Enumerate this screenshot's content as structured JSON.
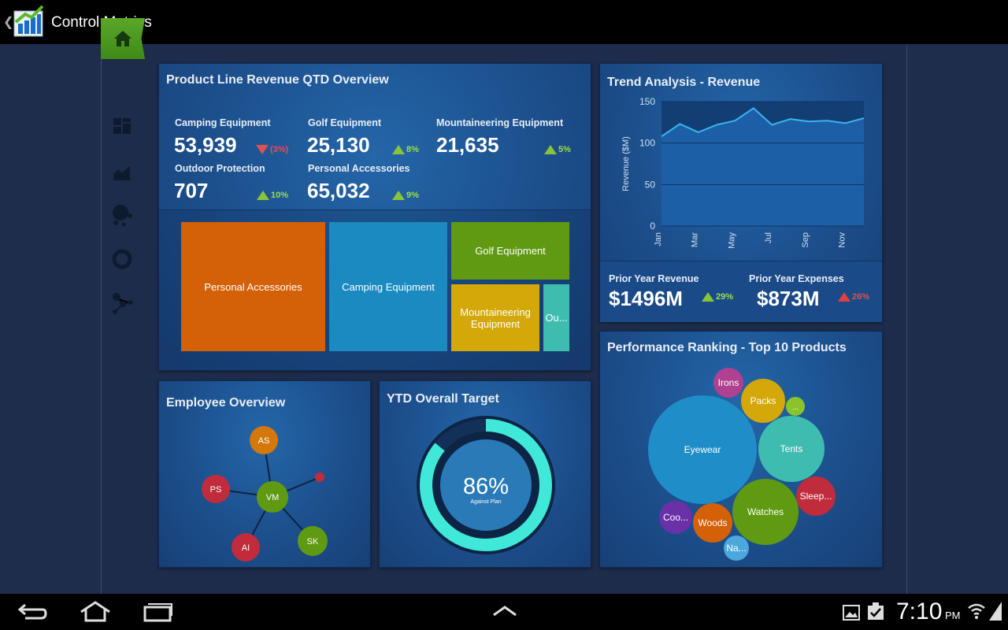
{
  "app": {
    "title": "Control Metrics"
  },
  "colors": {
    "accent_green": "#4a9a1e",
    "panel_blue": "#1c4f8c",
    "up": "#9be04a",
    "down": "#e05050"
  },
  "sidebar": {
    "items": [
      {
        "icon": "home-icon"
      },
      {
        "icon": "dashboard-grid-icon"
      },
      {
        "icon": "area-chart-icon"
      },
      {
        "icon": "bubble-chart-icon"
      },
      {
        "icon": "donut-chart-icon"
      },
      {
        "icon": "network-graph-icon"
      }
    ]
  },
  "product_revenue": {
    "title": "Product Line Revenue QTD Overview",
    "kpis": [
      {
        "label": "Camping Equipment",
        "value": "53,939",
        "delta": "(3%)",
        "trend": "down"
      },
      {
        "label": "Golf Equipment",
        "value": "25,130",
        "delta": "8%",
        "trend": "up"
      },
      {
        "label": "Mountaineering Equipment",
        "value": "21,635",
        "delta": "5%",
        "trend": "up"
      },
      {
        "label": "Outdoor Protection",
        "value": "707",
        "delta": "10%",
        "trend": "up"
      },
      {
        "label": "Personal Accessories",
        "value": "65,032",
        "delta": "9%",
        "trend": "up"
      }
    ],
    "treemap": [
      {
        "label": "Personal Accessories",
        "color": "#d46008"
      },
      {
        "label": "Camping Equipment",
        "color": "#1b8ac0"
      },
      {
        "label": "Golf Equipment",
        "color": "#5f9a12"
      },
      {
        "label": "Mountaineering Equipment",
        "color": "#d4a808"
      },
      {
        "label": "Ou...",
        "color": "#3fbcb0"
      }
    ]
  },
  "trend": {
    "title": "Trend Analysis - Revenue",
    "prior_revenue_label": "Prior Year Revenue",
    "prior_revenue_value": "$1496M",
    "prior_revenue_delta": "29%",
    "prior_expenses_label": "Prior Year Expenses",
    "prior_expenses_value": "$873M",
    "prior_expenses_delta": "26%"
  },
  "chart_data": {
    "type": "area",
    "title": "Trend Analysis - Revenue",
    "ylabel": "Revenue ($M)",
    "xlabel": "",
    "ylim": [
      0,
      150
    ],
    "yticks": [
      0,
      50,
      100,
      150
    ],
    "x": [
      "Jan",
      "Feb",
      "Mar",
      "Apr",
      "May",
      "Jun",
      "Jul",
      "Aug",
      "Sep",
      "Oct",
      "Nov",
      "Dec"
    ],
    "xtick_labels": [
      "Jan",
      "Mar",
      "May",
      "Jul",
      "Sep",
      "Nov"
    ],
    "values": [
      108,
      123,
      113,
      122,
      127,
      142,
      122,
      129,
      126,
      127,
      124,
      130
    ]
  },
  "employee": {
    "title": "Employee Overview",
    "nodes": [
      {
        "label": "AS",
        "color": "#d4780a"
      },
      {
        "label": "PS",
        "color": "#c02c3c"
      },
      {
        "label": "VM",
        "color": "#5f9a12"
      },
      {
        "label": "AI",
        "color": "#c02c3c"
      },
      {
        "label": "SK",
        "color": "#5f9a12"
      },
      {
        "label": "",
        "color": "#c02c3c"
      }
    ]
  },
  "ytd": {
    "title": "YTD Overall Target",
    "percent": 86,
    "value_text": "86%",
    "caption": "Against Plan"
  },
  "ranking": {
    "title": "Performance Ranking - Top 10 Products",
    "bubbles": [
      {
        "label": "Eyewear",
        "color": "#1f8ec8"
      },
      {
        "label": "Tents",
        "color": "#3fbcb0"
      },
      {
        "label": "Watches",
        "color": "#5f9a12"
      },
      {
        "label": "Packs",
        "color": "#d4a808"
      },
      {
        "label": "Irons",
        "color": "#b04090"
      },
      {
        "label": "...",
        "color": "#8ac32a"
      },
      {
        "label": "Sleep...",
        "color": "#c02c3c"
      },
      {
        "label": "Coo...",
        "color": "#6a30a8"
      },
      {
        "label": "Woods",
        "color": "#d46008"
      },
      {
        "label": "Na...",
        "color": "#4aa8dc"
      }
    ]
  },
  "status": {
    "time": "7:10",
    "ampm": "PM"
  }
}
